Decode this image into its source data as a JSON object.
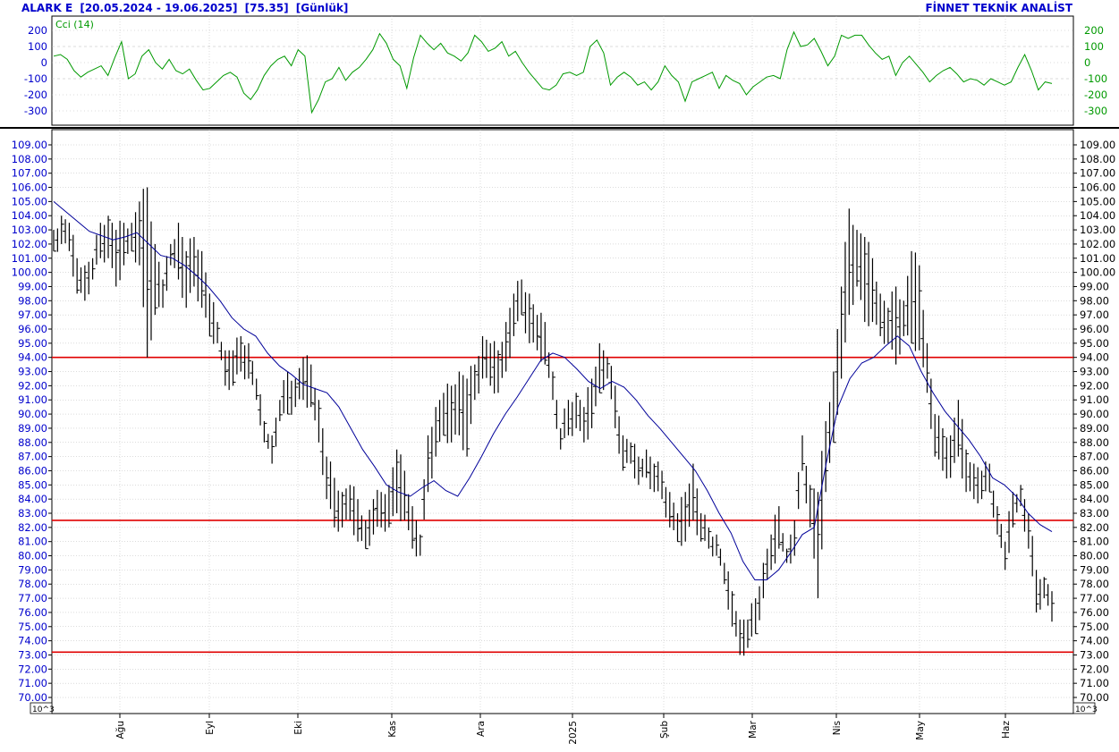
{
  "header": {
    "symbol": "ALARK E",
    "date_range": "[20.05.2024 - 19.06.2025]",
    "last_price": "[75.35]",
    "period": "[Günlük]",
    "provider": "FİNNET TEKNİK ANALİST"
  },
  "colors": {
    "header_text": "#0000cc",
    "left_tick_text": "#0000cc",
    "cci_line": "#009900",
    "ma_line": "#000099",
    "support_resistance": "#e00000",
    "bars": "#000000",
    "grid": "#b8b8b8"
  },
  "panels": {
    "cci": {
      "label": "Cci (14)",
      "ticks": [
        200,
        100,
        0,
        -100,
        -200,
        -300
      ],
      "tick_labels": [
        "200",
        "100",
        "0",
        "-100",
        "-200",
        "-300"
      ],
      "grid_dashed_levels": [
        100,
        -100
      ]
    },
    "price": {
      "ticks": [
        70,
        71,
        72,
        73,
        74,
        75,
        76,
        77,
        78,
        79,
        80,
        81,
        82,
        83,
        84,
        85,
        86,
        87,
        88,
        89,
        90,
        91,
        92,
        93,
        94,
        95,
        96,
        97,
        98,
        99,
        100,
        101,
        102,
        103,
        104,
        105,
        106,
        107,
        108,
        109
      ],
      "tick_labels": [
        "70.00",
        "71.00",
        "72.00",
        "73.00",
        "74.00",
        "75.00",
        "76.00",
        "77.00",
        "78.00",
        "79.00",
        "80.00",
        "81.00",
        "82.00",
        "83.00",
        "84.00",
        "85.00",
        "86.00",
        "87.00",
        "88.00",
        "89.00",
        "90.00",
        "91.00",
        "92.00",
        "93.00",
        "94.00",
        "95.00",
        "96.00",
        "97.00",
        "98.00",
        "99.00",
        "100.00",
        "101.00",
        "102.00",
        "103.00",
        "104.00",
        "105.00",
        "106.00",
        "107.00",
        "108.00",
        "109.00"
      ],
      "scale_label_left": "10^3",
      "scale_label_right": "10^3",
      "horizontal_lines": [
        94.0,
        82.5,
        73.2
      ]
    }
  },
  "x_axis": {
    "labels": [
      "Ağu",
      "Eyl",
      "Eki",
      "Kas",
      "Ara",
      "2025",
      "Şub",
      "Mar",
      "Nis",
      "May",
      "Haz"
    ]
  },
  "chart_data": {
    "type": "line",
    "title": "ALARK E [20.05.2024 - 19.06.2025] [75.35] [Günlük]",
    "note": "daily OHLC bars with a moving-average line, CCI(14) oscillator panel on top",
    "price": {
      "ylim": [
        70,
        109
      ],
      "sample_every_n_days": 2,
      "bars": [
        [
          103.0,
          101.5
        ],
        [
          104.0,
          102.0
        ],
        [
          103.5,
          101.5
        ],
        [
          101.0,
          98.5
        ],
        [
          100.5,
          98.0
        ],
        [
          101.0,
          99.5
        ],
        [
          103.5,
          101.0
        ],
        [
          104.0,
          101.0
        ],
        [
          103.0,
          99.0
        ],
        [
          103.5,
          100.5
        ],
        [
          103.5,
          101.5
        ],
        [
          105.0,
          100.5
        ],
        [
          106.0,
          94.0
        ],
        [
          102.0,
          97.0
        ],
        [
          99.5,
          97.5
        ],
        [
          102.0,
          100.5
        ],
        [
          103.5,
          99.5
        ],
        [
          101.5,
          97.5
        ],
        [
          102.5,
          99.0
        ],
        [
          101.5,
          97.5
        ],
        [
          98.5,
          95.5
        ],
        [
          96.5,
          95.0
        ],
        [
          94.5,
          92.0
        ],
        [
          94.5,
          92.0
        ],
        [
          95.5,
          93.0
        ],
        [
          95.0,
          92.5
        ],
        [
          92.5,
          91.0
        ],
        [
          89.5,
          88.0
        ],
        [
          88.5,
          86.5
        ],
        [
          91.0,
          89.5
        ],
        [
          93.0,
          90.0
        ],
        [
          92.5,
          90.5
        ],
        [
          94.0,
          91.0
        ],
        [
          93.5,
          90.5
        ],
        [
          91.0,
          88.0
        ],
        [
          87.0,
          84.0
        ],
        [
          85.5,
          82.0
        ],
        [
          84.5,
          82.0
        ],
        [
          85.0,
          82.5
        ],
        [
          84.0,
          81.0
        ],
        [
          82.5,
          80.5
        ],
        [
          84.0,
          81.5
        ],
        [
          84.5,
          82.0
        ],
        [
          85.0,
          82.0
        ],
        [
          87.5,
          83.0
        ],
        [
          86.0,
          82.5
        ],
        [
          83.5,
          80.5
        ],
        [
          81.5,
          80.0
        ],
        [
          88.5,
          84.5
        ],
        [
          90.5,
          87.0
        ],
        [
          91.5,
          88.5
        ],
        [
          92.0,
          88.0
        ],
        [
          93.0,
          88.5
        ],
        [
          92.5,
          87.0
        ],
        [
          93.5,
          91.0
        ],
        [
          95.5,
          92.5
        ],
        [
          95.0,
          92.0
        ],
        [
          94.5,
          91.5
        ],
        [
          96.5,
          93.0
        ],
        [
          98.5,
          95.5
        ],
        [
          99.5,
          97.0
        ],
        [
          98.5,
          95.0
        ],
        [
          97.0,
          94.5
        ],
        [
          96.5,
          93.5
        ],
        [
          93.0,
          91.0
        ],
        [
          89.0,
          87.5
        ],
        [
          91.0,
          88.5
        ],
        [
          91.5,
          89.0
        ],
        [
          90.5,
          88.0
        ],
        [
          92.5,
          89.0
        ],
        [
          95.0,
          91.5
        ],
        [
          94.0,
          92.5
        ],
        [
          92.0,
          89.0
        ],
        [
          88.5,
          86.0
        ],
        [
          88.0,
          86.5
        ],
        [
          87.0,
          85.0
        ],
        [
          87.5,
          85.5
        ],
        [
          86.5,
          84.5
        ],
        [
          86.0,
          84.0
        ],
        [
          84.5,
          82.0
        ],
        [
          83.0,
          81.0
        ],
        [
          84.5,
          81.0
        ],
        [
          86.5,
          82.5
        ],
        [
          83.0,
          81.0
        ],
        [
          82.0,
          80.5
        ],
        [
          81.5,
          80.0
        ],
        [
          79.5,
          78.0
        ],
        [
          77.5,
          75.0
        ],
        [
          75.5,
          73.0
        ],
        [
          75.5,
          73.5
        ],
        [
          77.0,
          74.5
        ],
        [
          79.5,
          77.0
        ],
        [
          81.5,
          79.0
        ],
        [
          83.5,
          80.5
        ],
        [
          80.5,
          79.5
        ],
        [
          82.5,
          80.0
        ],
        [
          88.5,
          86.0
        ],
        [
          85.0,
          82.0
        ],
        [
          84.5,
          77.0
        ],
        [
          89.5,
          84.5
        ],
        [
          93.0,
          88.0
        ],
        [
          99.0,
          92.5
        ],
        [
          104.5,
          97.0
        ],
        [
          103.0,
          99.0
        ],
        [
          102.5,
          96.5
        ],
        [
          101.0,
          96.5
        ],
        [
          98.5,
          95.5
        ],
        [
          97.5,
          95.0
        ],
        [
          99.0,
          93.5
        ],
        [
          98.0,
          95.5
        ],
        [
          101.5,
          95.0
        ],
        [
          100.5,
          94.5
        ],
        [
          95.0,
          91.5
        ],
        [
          90.0,
          87.0
        ],
        [
          89.0,
          86.0
        ],
        [
          88.5,
          85.5
        ],
        [
          91.0,
          87.0
        ],
        [
          87.5,
          84.5
        ],
        [
          86.5,
          84.0
        ],
        [
          86.0,
          84.0
        ],
        [
          86.5,
          84.5
        ],
        [
          83.5,
          81.5
        ],
        [
          81.0,
          79.0
        ],
        [
          84.5,
          82.0
        ],
        [
          85.0,
          83.5
        ],
        [
          83.0,
          80.5
        ],
        [
          79.0,
          76.0
        ],
        [
          78.5,
          77.0
        ],
        [
          77.5,
          75.35
        ]
      ],
      "moving_average": [
        105.0,
        104.3,
        103.6,
        102.9,
        102.6,
        102.3,
        102.5,
        102.8,
        102.0,
        101.2,
        101.0,
        100.5,
        99.8,
        99.0,
        98.0,
        96.8,
        96.0,
        95.5,
        94.3,
        93.4,
        92.8,
        92.1,
        91.8,
        91.5,
        90.5,
        89.0,
        87.5,
        86.3,
        85.0,
        84.5,
        84.2,
        84.8,
        85.3,
        84.6,
        84.2,
        85.5,
        87.0,
        88.6,
        90.0,
        91.2,
        92.5,
        93.8,
        94.3,
        94.0,
        93.2,
        92.3,
        91.8,
        92.3,
        91.9,
        91.0,
        89.9,
        89.0,
        88.0,
        87.0,
        86.0,
        84.6,
        83.0,
        81.6,
        79.6,
        78.3,
        78.3,
        79.0,
        80.2,
        81.5,
        82.0,
        86.5,
        90.5,
        92.5,
        93.6,
        94.0,
        94.8,
        95.5,
        94.8,
        93.0,
        91.5,
        90.2,
        89.2,
        88.2,
        87.0,
        85.5,
        85.0,
        84.2,
        83.0,
        82.2,
        81.7
      ]
    },
    "cci": {
      "ylim": [
        -350,
        250
      ],
      "values": [
        40,
        50,
        20,
        -50,
        -90,
        -60,
        -40,
        -20,
        -80,
        30,
        130,
        -100,
        -70,
        40,
        80,
        0,
        -40,
        20,
        -50,
        -70,
        -40,
        -110,
        -170,
        -160,
        -120,
        -80,
        -60,
        -90,
        -190,
        -230,
        -170,
        -80,
        -20,
        20,
        40,
        -20,
        80,
        40,
        -310,
        -230,
        -120,
        -100,
        -30,
        -110,
        -60,
        -30,
        20,
        80,
        180,
        120,
        20,
        -20,
        -160,
        30,
        170,
        120,
        80,
        120,
        60,
        40,
        10,
        60,
        170,
        130,
        70,
        90,
        130,
        40,
        70,
        0,
        -60,
        -110,
        -160,
        -170,
        -140,
        -70,
        -60,
        -80,
        -60,
        100,
        140,
        60,
        -140,
        -90,
        -60,
        -90,
        -140,
        -120,
        -170,
        -120,
        -20,
        -80,
        -120,
        -240,
        -120,
        -100,
        -80,
        -60,
        -160,
        -80,
        -110,
        -130,
        -200,
        -150,
        -120,
        -90,
        -80,
        -100,
        80,
        190,
        100,
        110,
        150,
        70,
        -20,
        40,
        170,
        150,
        170,
        170,
        110,
        60,
        20,
        40,
        -80,
        0,
        40,
        -10,
        -60,
        -120,
        -80,
        -50,
        -30,
        -70,
        -120,
        -100,
        -110,
        -140,
        -100,
        -120,
        -140,
        -120,
        -30,
        50,
        -50,
        -170,
        -120,
        -130
      ]
    }
  }
}
